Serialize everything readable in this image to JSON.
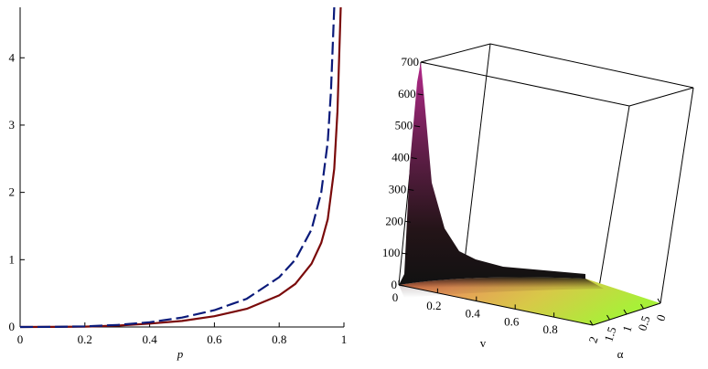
{
  "chart_data": [
    {
      "type": "line",
      "title": "",
      "xlabel": "p",
      "ylabel": "",
      "xlim": [
        0,
        1
      ],
      "ylim": [
        0,
        4.75
      ],
      "x_ticks": [
        0,
        0.2,
        0.4,
        0.6,
        0.8,
        1
      ],
      "x_tick_labels": [
        "0",
        "0.2",
        "0.4",
        "0.6",
        "0.8",
        "1"
      ],
      "y_ticks": [
        0,
        1,
        2,
        3,
        4
      ],
      "y_tick_labels": [
        "0",
        "1",
        "2",
        "3",
        "4"
      ],
      "grid": false,
      "series": [
        {
          "style": "solid",
          "color": "#7a0a0a",
          "x": [
            0,
            0.1,
            0.2,
            0.3,
            0.4,
            0.5,
            0.6,
            0.7,
            0.8,
            0.85,
            0.9,
            0.93,
            0.95,
            0.97,
            0.98,
            0.99
          ],
          "y": [
            0.0,
            0.001,
            0.006,
            0.02,
            0.05,
            0.09,
            0.16,
            0.27,
            0.47,
            0.64,
            0.94,
            1.25,
            1.6,
            2.35,
            3.2,
            4.75
          ]
        },
        {
          "style": "dashed",
          "color": "#0a1a7a",
          "x": [
            0,
            0.1,
            0.2,
            0.3,
            0.4,
            0.5,
            0.6,
            0.7,
            0.8,
            0.85,
            0.9,
            0.93,
            0.95,
            0.96,
            0.97
          ],
          "y": [
            0.0,
            0.002,
            0.01,
            0.03,
            0.07,
            0.14,
            0.25,
            0.42,
            0.74,
            1.0,
            1.45,
            2.0,
            2.75,
            3.5,
            4.75
          ]
        }
      ]
    },
    {
      "type": "surface",
      "title": "",
      "xlabel": "v",
      "ylabel": "α",
      "zlabel": "",
      "xlim": [
        0,
        1
      ],
      "ylim": [
        0,
        2
      ],
      "zlim": [
        0,
        700
      ],
      "x_tick_labels": [
        "0",
        "0.2",
        "0.4",
        "0.6",
        "0.8"
      ],
      "y_tick_labels": [
        "0",
        "0.5",
        "1",
        "1.5",
        "2"
      ],
      "z_tick_labels": [
        "0",
        "100",
        "200",
        "300",
        "400",
        "500",
        "600",
        "700"
      ],
      "colors": {
        "high": "#7a2060",
        "mid": "#1a1a1a",
        "low_near": "#e8845a",
        "low_far": "#c8ff40",
        "edge": "#f0e020"
      }
    }
  ]
}
